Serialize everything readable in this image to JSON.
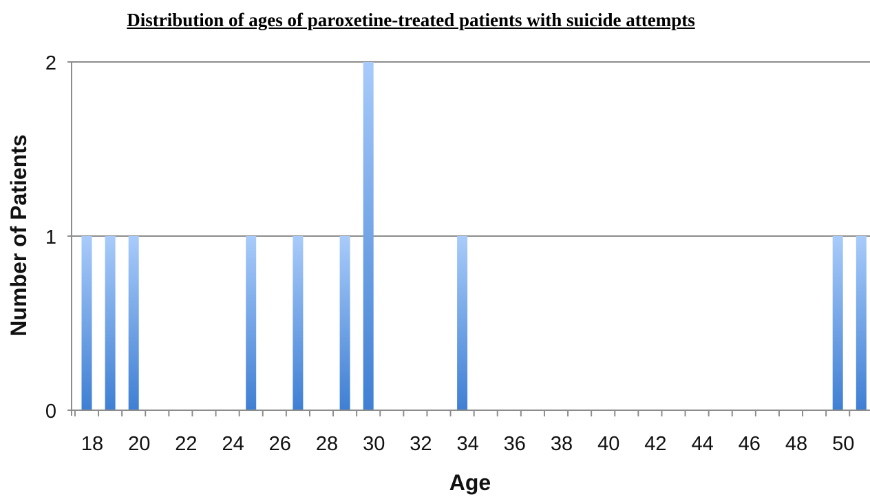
{
  "chart_data": {
    "type": "bar",
    "title": "Distribution of ages of paroxetine-treated patients with suicide attempts",
    "xlabel": "Age",
    "ylabel": "Number of Patients",
    "xlim": [
      17,
      51
    ],
    "ylim": [
      0,
      2
    ],
    "x_ticks": [
      18,
      20,
      22,
      24,
      26,
      28,
      30,
      32,
      34,
      36,
      38,
      40,
      42,
      44,
      46,
      48,
      50
    ],
    "y_ticks": [
      0,
      1,
      2
    ],
    "grid": true,
    "x": [
      18,
      19,
      20,
      25,
      27,
      29,
      30,
      34,
      50,
      51
    ],
    "values": [
      1,
      1,
      1,
      1,
      1,
      1,
      2,
      1,
      1,
      1
    ],
    "colors": {
      "bar_top": "#a8cbfa",
      "bar_bottom": "#3f7fd3",
      "grid": "#8c8c8c",
      "axis": "#8c8c8c"
    }
  }
}
